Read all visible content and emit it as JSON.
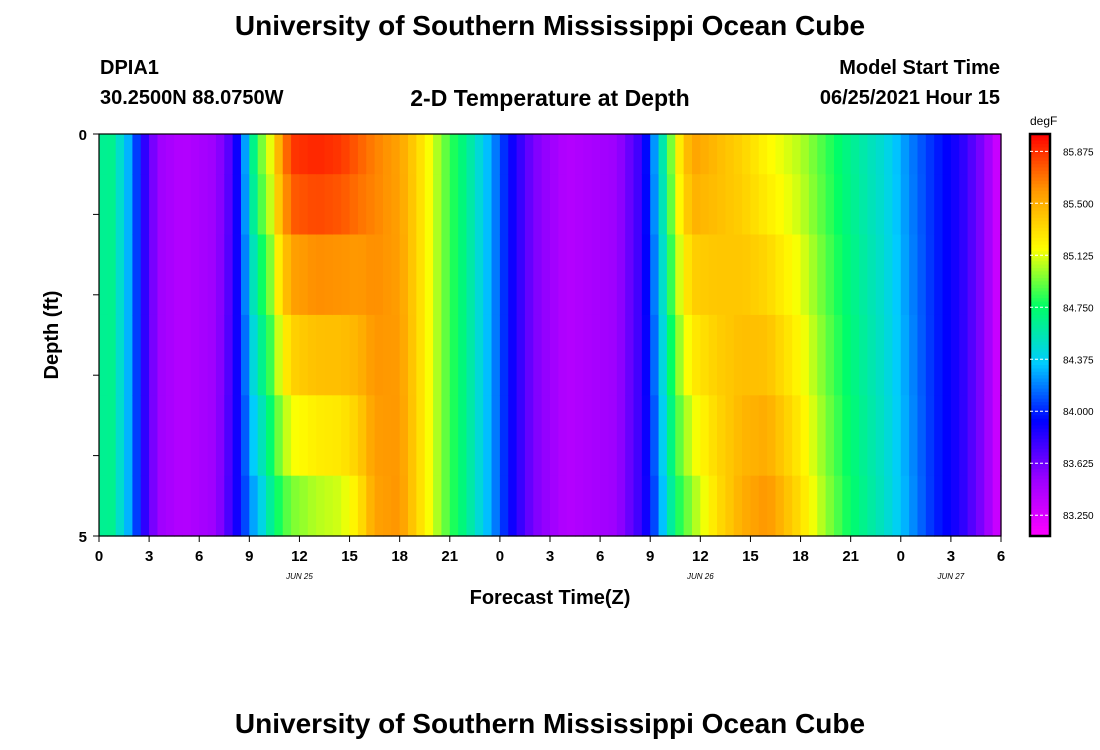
{
  "header": {
    "title": "University of Southern Mississippi Ocean Cube",
    "station_id": "DPIA1",
    "station_location": "30.2500N  88.0750W",
    "plot_title": "2-D Temperature at Depth",
    "model_start_label": "Model Start Time",
    "model_start_value": "06/25/2021 Hour 15"
  },
  "footer": {
    "title": "University of Southern Mississippi Ocean Cube"
  },
  "chart_data": {
    "type": "heatmap",
    "title": "2-D Temperature at Depth",
    "xlabel": "Forecast Time(Z)",
    "ylabel": "Depth (ft)",
    "x_range_hours": [
      0,
      54
    ],
    "y_range_ft": [
      0,
      5
    ],
    "x_tick_labels": [
      "0",
      "3",
      "6",
      "9",
      "12",
      "15",
      "18",
      "21",
      "0",
      "3",
      "6",
      "9",
      "12",
      "15",
      "18",
      "21",
      "0",
      "3",
      "6"
    ],
    "y_tick_labels": [
      "0",
      "5"
    ],
    "date_labels": [
      {
        "text": "JUN 25",
        "hour": 12
      },
      {
        "text": "JUN 26",
        "hour": 36
      },
      {
        "text": "JUN 27",
        "hour": 51
      }
    ],
    "depth_bins_ft": [
      0.25,
      0.75,
      1.75,
      2.75,
      3.75,
      4.75
    ],
    "colorbar": {
      "unit": "degF",
      "min": 83.1,
      "max": 86.0,
      "tick_labels": [
        "85.875",
        "85.500",
        "85.125",
        "84.750",
        "84.375",
        "84.000",
        "83.625",
        "83.250"
      ]
    },
    "temperature_profile_degF": [
      {
        "hour": 0,
        "surface": 84.6,
        "bottom": 84.6
      },
      {
        "hour": 0.6,
        "surface": 84.7,
        "bottom": 84.7
      },
      {
        "hour": 1.2,
        "surface": 84.5,
        "bottom": 84.5
      },
      {
        "hour": 2,
        "surface": 84.2,
        "bottom": 84.2
      },
      {
        "hour": 2.5,
        "surface": 83.9,
        "bottom": 83.9
      },
      {
        "hour": 3.5,
        "surface": 83.5,
        "bottom": 83.5
      },
      {
        "hour": 5,
        "surface": 83.4,
        "bottom": 83.4
      },
      {
        "hour": 7,
        "surface": 83.5,
        "bottom": 83.5
      },
      {
        "hour": 8,
        "surface": 83.75,
        "bottom": 83.8
      },
      {
        "hour": 8.6,
        "surface": 84.1,
        "bottom": 84.0
      },
      {
        "hour": 9,
        "surface": 84.5,
        "bottom": 84.2
      },
      {
        "hour": 9.6,
        "surface": 84.9,
        "bottom": 84.35
      },
      {
        "hour": 10.2,
        "surface": 85.1,
        "bottom": 84.6
      },
      {
        "hour": 10.8,
        "surface": 85.5,
        "bottom": 84.8
      },
      {
        "hour": 11.5,
        "surface": 85.85,
        "bottom": 84.95
      },
      {
        "hour": 13,
        "surface": 85.9,
        "bottom": 85.05
      },
      {
        "hour": 14.5,
        "surface": 85.85,
        "bottom": 85.1
      },
      {
        "hour": 15.5,
        "surface": 85.75,
        "bottom": 85.25
      },
      {
        "hour": 16.5,
        "surface": 85.65,
        "bottom": 85.55
      },
      {
        "hour": 18,
        "surface": 85.55,
        "bottom": 85.6
      },
      {
        "hour": 19,
        "surface": 85.35,
        "bottom": 85.35
      },
      {
        "hour": 20,
        "surface": 85.1,
        "bottom": 85.1
      },
      {
        "hour": 21,
        "surface": 84.85,
        "bottom": 84.85
      },
      {
        "hour": 22,
        "surface": 84.65,
        "bottom": 84.65
      },
      {
        "hour": 23.5,
        "surface": 84.25,
        "bottom": 84.25
      },
      {
        "hour": 24.5,
        "surface": 83.95,
        "bottom": 83.95
      },
      {
        "hour": 26,
        "surface": 83.6,
        "bottom": 83.6
      },
      {
        "hour": 28,
        "surface": 83.4,
        "bottom": 83.4
      },
      {
        "hour": 31,
        "surface": 83.5,
        "bottom": 83.5
      },
      {
        "hour": 32.5,
        "surface": 83.8,
        "bottom": 83.8
      },
      {
        "hour": 33.2,
        "surface": 84.2,
        "bottom": 84.05
      },
      {
        "hour": 33.8,
        "surface": 84.6,
        "bottom": 84.35
      },
      {
        "hour": 34.5,
        "surface": 85.15,
        "bottom": 84.75
      },
      {
        "hour": 35.5,
        "surface": 85.55,
        "bottom": 85.0
      },
      {
        "hour": 37,
        "surface": 85.45,
        "bottom": 85.3
      },
      {
        "hour": 38.5,
        "surface": 85.35,
        "bottom": 85.5
      },
      {
        "hour": 40,
        "surface": 85.2,
        "bottom": 85.6
      },
      {
        "hour": 42,
        "surface": 85.05,
        "bottom": 85.3
      },
      {
        "hour": 43.5,
        "surface": 84.85,
        "bottom": 85.0
      },
      {
        "hour": 45,
        "surface": 84.65,
        "bottom": 84.75
      },
      {
        "hour": 47,
        "surface": 84.45,
        "bottom": 84.5
      },
      {
        "hour": 48.5,
        "surface": 84.2,
        "bottom": 84.25
      },
      {
        "hour": 50,
        "surface": 84.0,
        "bottom": 84.0
      },
      {
        "hour": 51.5,
        "surface": 83.85,
        "bottom": 83.85
      },
      {
        "hour": 53,
        "surface": 83.55,
        "bottom": 83.55
      },
      {
        "hour": 54,
        "surface": 83.25,
        "bottom": 83.25
      }
    ]
  },
  "colors": {
    "ramp": [
      "#ff00ff",
      "#9900ff",
      "#0000ff",
      "#00ccff",
      "#00ff66",
      "#ffff00",
      "#ff9900",
      "#ff0000"
    ]
  }
}
